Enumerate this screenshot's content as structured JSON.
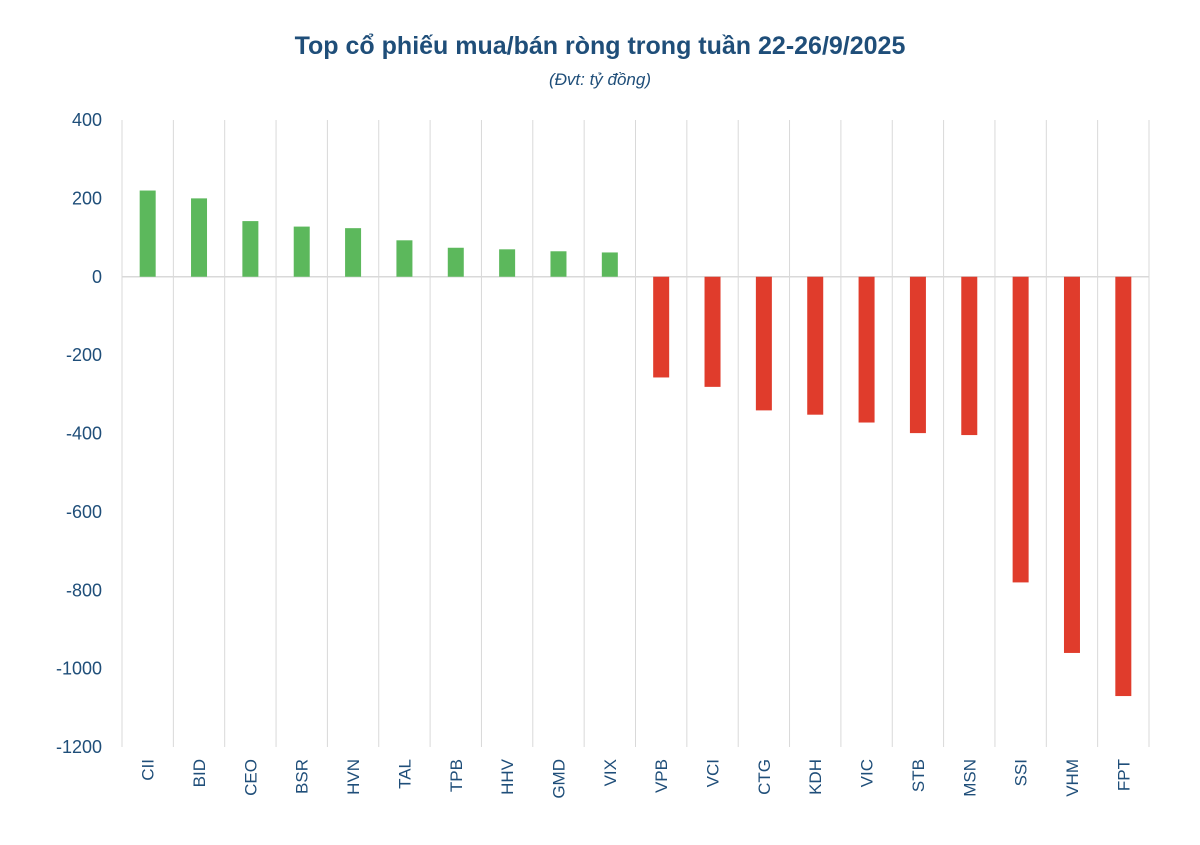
{
  "chart_data": {
    "type": "bar",
    "title": "Top cổ phiếu mua/bán ròng trong tuần 22-26/9/2025",
    "subtitle": "(Đvt: tỷ đồng)",
    "xlabel": "",
    "ylabel": "",
    "ylim": [
      -1200,
      400
    ],
    "yticks": [
      400,
      200,
      0,
      -200,
      -400,
      -600,
      -800,
      -1000,
      -1200
    ],
    "grid": "vertical",
    "legend": "none",
    "categories": [
      "CII",
      "BID",
      "CEO",
      "BSR",
      "HVN",
      "TAL",
      "TPB",
      "HHV",
      "GMD",
      "VIX",
      "VPB",
      "VCI",
      "CTG",
      "KDH",
      "VIC",
      "STB",
      "MSN",
      "SSI",
      "VHM",
      "FPT"
    ],
    "values": [
      220,
      200,
      142,
      128,
      124,
      93,
      74,
      70,
      65,
      62,
      -257,
      -281,
      -341,
      -352,
      -372,
      -399,
      -404,
      -780,
      -960,
      -1070
    ],
    "colors": {
      "positive": "#5cb85c",
      "negative": "#e03c2c",
      "grid": "#d9d9d9",
      "text": "#1f4e79"
    }
  }
}
